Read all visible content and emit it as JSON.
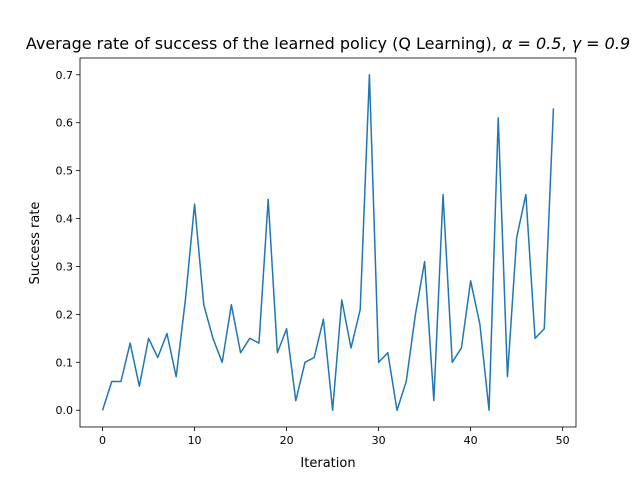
{
  "chart_data": {
    "type": "line",
    "title_prefix": "Average rate of success of the learned policy (Q Learning), ",
    "title_alpha": "α = 0.5",
    "title_sep": ", ",
    "title_gamma": "γ = 0.9",
    "xlabel": "Iteration",
    "ylabel": "Success rate",
    "xlim": [
      -2.45,
      51.45
    ],
    "ylim": [
      -0.035,
      0.735
    ],
    "xticks": [
      0,
      10,
      20,
      30,
      40,
      50
    ],
    "xtick_labels": [
      "0",
      "10",
      "20",
      "30",
      "40",
      "50"
    ],
    "yticks": [
      0.0,
      0.1,
      0.2,
      0.3,
      0.4,
      0.5,
      0.6,
      0.7
    ],
    "ytick_labels": [
      "0.0",
      "0.1",
      "0.2",
      "0.3",
      "0.4",
      "0.5",
      "0.6",
      "0.7"
    ],
    "grid": false,
    "series": [
      {
        "name": "success rate",
        "color": "#1f77b4",
        "x": [
          0,
          1,
          2,
          3,
          4,
          5,
          6,
          7,
          8,
          9,
          10,
          11,
          12,
          13,
          14,
          15,
          16,
          17,
          18,
          19,
          20,
          21,
          22,
          23,
          24,
          25,
          26,
          27,
          28,
          29,
          30,
          31,
          32,
          33,
          34,
          35,
          36,
          37,
          38,
          39,
          40,
          41,
          42,
          43,
          44,
          45,
          46,
          47,
          48,
          49
        ],
        "values": [
          0.0,
          0.06,
          0.06,
          0.14,
          0.05,
          0.15,
          0.11,
          0.16,
          0.07,
          0.23,
          0.43,
          0.22,
          0.15,
          0.1,
          0.22,
          0.12,
          0.15,
          0.14,
          0.44,
          0.12,
          0.17,
          0.02,
          0.1,
          0.11,
          0.19,
          0.0,
          0.23,
          0.13,
          0.21,
          0.7,
          0.1,
          0.12,
          0.0,
          0.06,
          0.2,
          0.31,
          0.02,
          0.45,
          0.1,
          0.13,
          0.27,
          0.18,
          0.0,
          0.61,
          0.07,
          0.36,
          0.45,
          0.15,
          0.17,
          0.63
        ]
      }
    ]
  }
}
